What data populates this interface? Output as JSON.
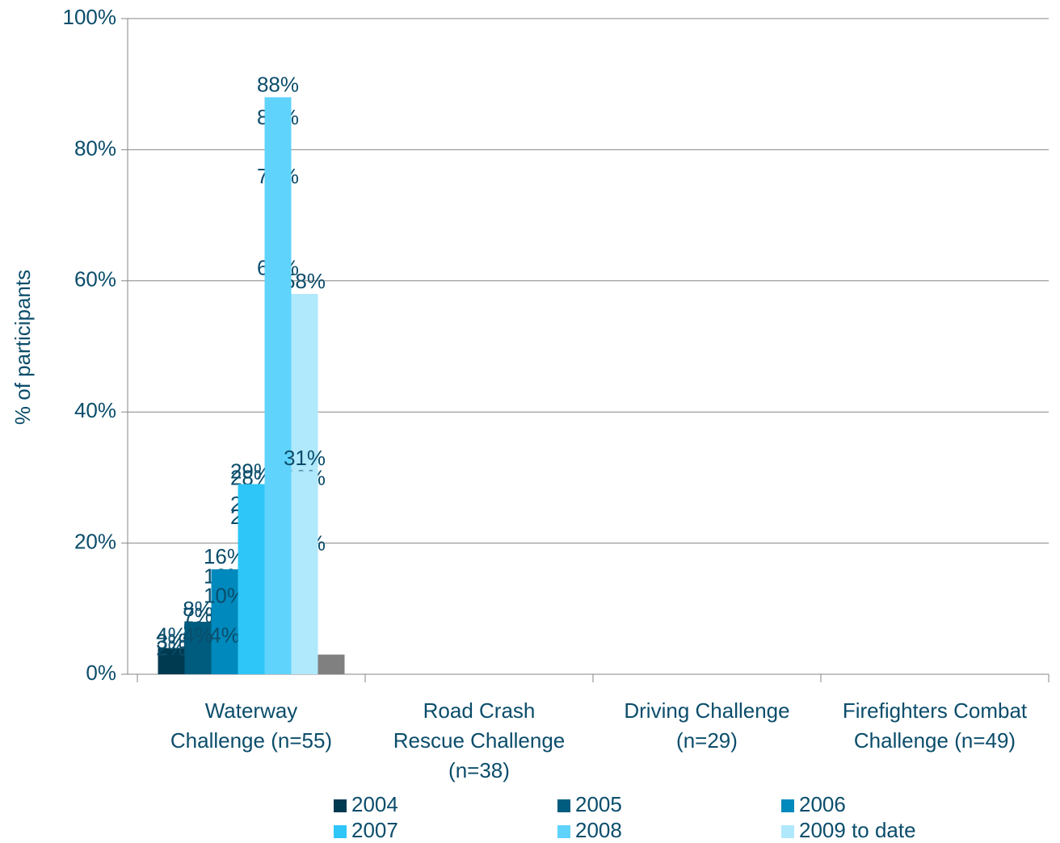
{
  "chart_data": {
    "type": "bar",
    "y_label": "% of participants",
    "categories": [
      [
        "Waterway",
        "Challenge (n=55)"
      ],
      [
        "Road Crash",
        "Rescue Challenge",
        "(n=38)"
      ],
      [
        "Driving Challenge",
        "(n=29)"
      ],
      [
        "Firefighters Combat",
        "Challenge (n=49)"
      ]
    ],
    "series": [
      {
        "name": "2004",
        "color": "#003a50",
        "values": [
          4,
          3,
          3,
          2
        ],
        "value_labels": [
          "4%",
          "3%",
          "3%",
          "2%"
        ]
      },
      {
        "name": "2005",
        "color": "#005c7e",
        "values": [
          5,
          8,
          7,
          4
        ],
        "value_labels": [
          "5%",
          "8%",
          "7%",
          "4%"
        ]
      },
      {
        "name": "2006",
        "color": "#0089bc",
        "values": [
          13,
          16,
          10,
          4
        ],
        "value_labels": [
          "13%",
          "16%",
          "10%",
          "4%"
        ]
      },
      {
        "name": "2007",
        "color": "#2ec6f8",
        "values": [
          22,
          24,
          28,
          29
        ],
        "value_labels": [
          "22%",
          "24%",
          "28%",
          "29%"
        ]
      },
      {
        "name": "2008",
        "color": "#5fd3fb",
        "values": [
          60,
          74,
          83,
          88
        ],
        "value_labels": [
          "60%",
          "74%",
          "83%",
          "88%"
        ]
      },
      {
        "name": "2009 to date",
        "color": "#b0e8fc",
        "values": [
          58,
          18,
          28,
          31
        ],
        "value_labels": [
          "58%",
          "18%",
          "28%",
          "31%"
        ]
      },
      {
        "color": "#808080",
        "values": [
          null,
          3,
          null,
          null
        ]
      }
    ],
    "ylim": [
      0,
      100
    ],
    "yticks": [
      {
        "value": 0,
        "label": "0%"
      },
      {
        "value": 20,
        "label": "20%"
      },
      {
        "value": 40,
        "label": "40%"
      },
      {
        "value": 60,
        "label": "60%"
      },
      {
        "value": 80,
        "label": "80%"
      },
      {
        "value": 100,
        "label": "100%"
      }
    ],
    "grid": true
  }
}
